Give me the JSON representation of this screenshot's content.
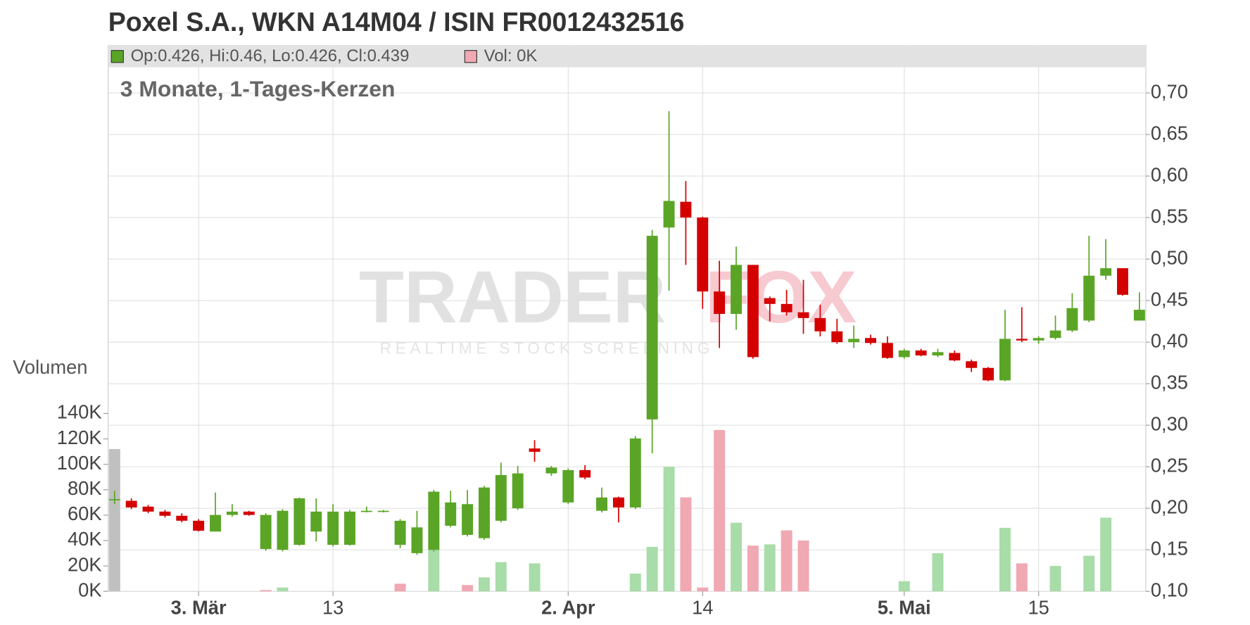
{
  "chart_data": {
    "type": "candlestick",
    "title": "Poxel S.A., WKN A14M04 / ISIN FR0012432516",
    "subtitle": "3 Monate, 1-Tages-Kerzen",
    "header_ohlc": "Op:0.426, Hi:0.46, Lo:0.426, Cl:0.439",
    "header_volume": "Vol: 0K",
    "volume_label": "Volumen",
    "watermark": {
      "brand_left": "TRADER",
      "brand_right": "FOX",
      "tagline": "REALTIME STOCK SCREENING"
    },
    "categories": [
      null,
      null,
      null,
      null,
      null,
      "3. Mär",
      null,
      null,
      null,
      null,
      null,
      null,
      null,
      "13",
      null,
      null,
      null,
      null,
      null,
      null,
      null,
      null,
      null,
      null,
      null,
      null,
      null,
      "2. Apr",
      null,
      null,
      null,
      null,
      null,
      null,
      null,
      "14",
      null,
      null,
      null,
      null,
      null,
      null,
      null,
      null,
      null,
      null,
      null,
      "5. Mai",
      null,
      null,
      null,
      null,
      null,
      null,
      null,
      "15",
      null,
      null,
      null,
      null,
      null,
      null
    ],
    "open": [
      0.21,
      0.209,
      0.202,
      0.196,
      0.191,
      0.185,
      0.172,
      0.192,
      0.196,
      0.151,
      0.15,
      0.156,
      0.172,
      0.156,
      0.156,
      0.196,
      0.196,
      0.156,
      0.146,
      0.15,
      0.179,
      0.168,
      0.164,
      0.185,
      0.2,
      0.272,
      0.242,
      0.207,
      0.246,
      0.197,
      0.213,
      0.201,
      0.307,
      0.538,
      0.569,
      0.55,
      0.461,
      0.434,
      0.493,
      0.453,
      0.446,
      0.436,
      0.429,
      0.413,
      0.4,
      0.405,
      0.399,
      0.382,
      0.39,
      0.384,
      0.387,
      0.377,
      0.369,
      0.354,
      0.404,
      0.402,
      0.405,
      0.414,
      0.426,
      0.48,
      0.489,
      0.426
    ],
    "high": [
      0.221,
      0.212,
      0.204,
      0.198,
      0.194,
      0.187,
      0.219,
      0.205,
      0.197,
      0.194,
      0.199,
      0.213,
      0.212,
      0.205,
      0.198,
      0.202,
      0.198,
      0.187,
      0.197,
      0.222,
      0.221,
      0.222,
      0.227,
      0.255,
      0.251,
      0.282,
      0.251,
      0.248,
      0.252,
      0.225,
      0.214,
      0.287,
      0.535,
      0.678,
      0.594,
      0.551,
      0.498,
      0.515,
      0.493,
      0.455,
      0.463,
      0.475,
      0.445,
      0.428,
      0.42,
      0.409,
      0.407,
      0.392,
      0.392,
      0.392,
      0.39,
      0.379,
      0.37,
      0.439,
      0.442,
      0.407,
      0.432,
      0.459,
      0.528,
      0.524,
      0.489,
      0.46
    ],
    "low": [
      0.205,
      0.199,
      0.194,
      0.189,
      0.183,
      0.172,
      0.172,
      0.19,
      0.191,
      0.149,
      0.148,
      0.155,
      0.16,
      0.154,
      0.155,
      0.195,
      0.195,
      0.152,
      0.144,
      0.148,
      0.177,
      0.166,
      0.162,
      0.183,
      0.198,
      0.256,
      0.239,
      0.205,
      0.235,
      0.195,
      0.183,
      0.199,
      0.266,
      0.462,
      0.493,
      0.44,
      0.393,
      0.415,
      0.38,
      0.425,
      0.432,
      0.41,
      0.407,
      0.398,
      0.393,
      0.397,
      0.38,
      0.38,
      0.383,
      0.382,
      0.377,
      0.364,
      0.353,
      0.353,
      0.4,
      0.398,
      0.403,
      0.412,
      0.424,
      0.475,
      0.456,
      0.426
    ],
    "close": [
      0.211,
      0.201,
      0.196,
      0.191,
      0.185,
      0.173,
      0.192,
      0.196,
      0.192,
      0.192,
      0.197,
      0.212,
      0.196,
      0.196,
      0.196,
      0.197,
      0.197,
      0.185,
      0.177,
      0.22,
      0.207,
      0.205,
      0.225,
      0.24,
      0.242,
      0.268,
      0.249,
      0.246,
      0.237,
      0.213,
      0.201,
      0.284,
      0.528,
      0.57,
      0.55,
      0.461,
      0.434,
      0.493,
      0.382,
      0.446,
      0.436,
      0.429,
      0.413,
      0.4,
      0.404,
      0.399,
      0.381,
      0.39,
      0.384,
      0.388,
      0.378,
      0.369,
      0.354,
      0.404,
      0.402,
      0.405,
      0.414,
      0.441,
      0.48,
      0.489,
      0.457,
      0.439
    ],
    "volume": [
      112,
      0,
      0,
      0,
      0,
      0,
      0,
      0,
      0,
      1,
      3,
      0,
      0,
      0,
      0,
      0,
      0,
      6,
      0,
      33,
      0,
      5,
      11,
      23,
      0,
      22,
      0,
      0,
      0,
      0,
      0,
      14,
      35,
      98,
      74,
      3,
      127,
      54,
      36,
      37,
      48,
      40,
      0,
      0,
      0,
      0,
      0,
      8,
      0,
      30,
      0,
      0,
      0,
      50,
      22,
      0,
      20,
      0,
      28,
      58,
      0,
      0
    ],
    "volume_colors": [
      "#c0c0c0",
      "#a8dca8",
      "#a8dca8",
      "#a8dca8",
      "#a8dca8",
      "#a8dca8",
      "#a8dca8",
      "#a8dca8",
      "#a8dca8",
      "#f0a8b2",
      "#a8dca8",
      "#a8dca8",
      "#a8dca8",
      "#a8dca8",
      "#a8dca8",
      "#a8dca8",
      "#a8dca8",
      "#f0a8b2",
      "#a8dca8",
      "#a8dca8",
      "#a8dca8",
      "#f0a8b2",
      "#a8dca8",
      "#a8dca8",
      "#a8dca8",
      "#a8dca8",
      "#a8dca8",
      "#a8dca8",
      "#a8dca8",
      "#a8dca8",
      "#a8dca8",
      "#a8dca8",
      "#a8dca8",
      "#a8dca8",
      "#f0a8b2",
      "#f0a8b2",
      "#f0a8b2",
      "#a8dca8",
      "#f0a8b2",
      "#a8dca8",
      "#f0a8b2",
      "#f0a8b2",
      "#a8dca8",
      "#a8dca8",
      "#a8dca8",
      "#a8dca8",
      "#a8dca8",
      "#a8dca8",
      "#a8dca8",
      "#a8dca8",
      "#a8dca8",
      "#a8dca8",
      "#a8dca8",
      "#a8dca8",
      "#f0a8b2",
      "#a8dca8",
      "#a8dca8",
      "#a8dca8",
      "#a8dca8",
      "#a8dca8",
      "#a8dca8",
      "#a8dca8"
    ],
    "up_color": "#5aa526",
    "down_color": "#d40000",
    "header_volume_color": "#f0a8b2",
    "ylim": [
      0.1,
      0.7
    ],
    "yticks": [
      {
        "value": 0.1,
        "label": "0,10"
      },
      {
        "value": 0.15,
        "label": "0,15"
      },
      {
        "value": 0.2,
        "label": "0,20"
      },
      {
        "value": 0.25,
        "label": "0,25"
      },
      {
        "value": 0.3,
        "label": "0,30"
      },
      {
        "value": 0.35,
        "label": "0,35"
      },
      {
        "value": 0.4,
        "label": "0,40"
      },
      {
        "value": 0.45,
        "label": "0,45"
      },
      {
        "value": 0.5,
        "label": "0,50"
      },
      {
        "value": 0.55,
        "label": "0,55"
      },
      {
        "value": 0.6,
        "label": "0,60"
      },
      {
        "value": 0.65,
        "label": "0,65"
      },
      {
        "value": 0.7,
        "label": "0,70"
      }
    ],
    "y2lim": [
      0,
      140
    ],
    "y2ticks": [
      {
        "value": 0,
        "label": "0K"
      },
      {
        "value": 20,
        "label": "20K"
      },
      {
        "value": 40,
        "label": "40K"
      },
      {
        "value": 60,
        "label": "60K"
      },
      {
        "value": 80,
        "label": "80K"
      },
      {
        "value": 100,
        "label": "100K"
      },
      {
        "value": 120,
        "label": "120K"
      },
      {
        "value": 140,
        "label": "140K"
      }
    ],
    "grid": true
  }
}
